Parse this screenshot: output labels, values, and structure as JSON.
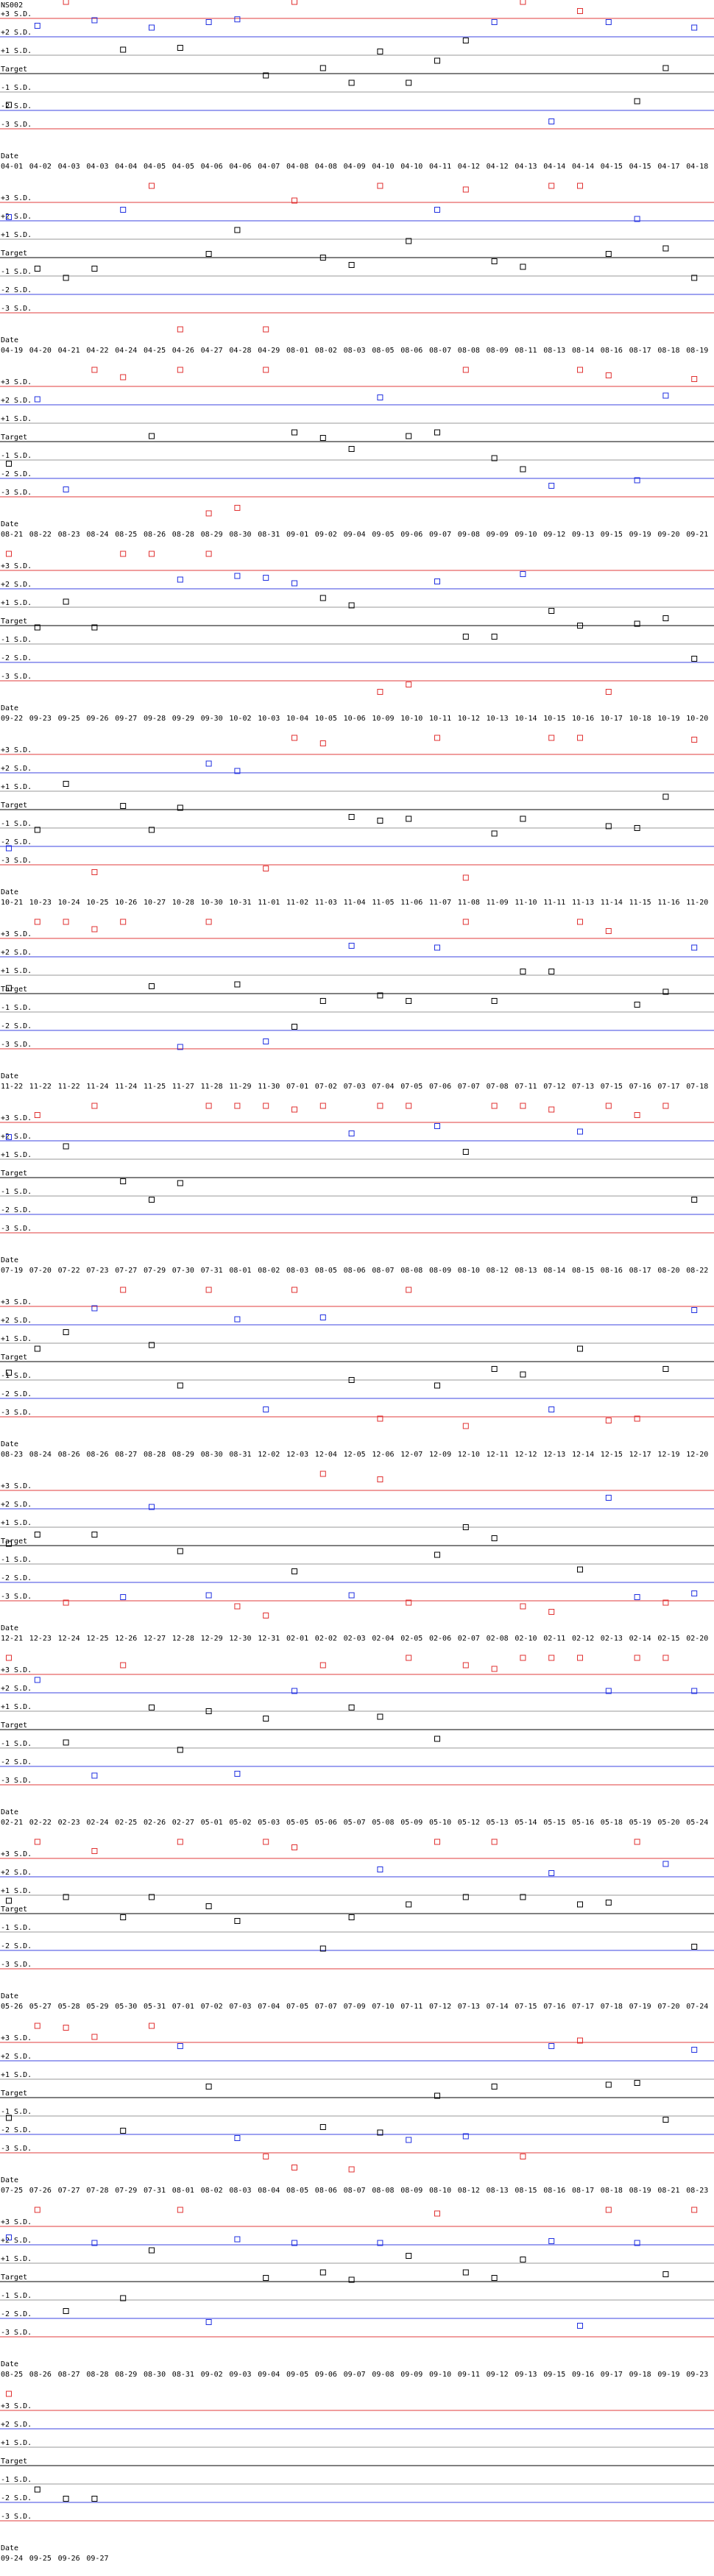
{
  "chart_data": {
    "type": "control",
    "title": "NS002",
    "x_label": "Date",
    "ylim": [
      -4,
      4
    ],
    "yticks": [
      {
        "value": 3,
        "label": "+3 S.D."
      },
      {
        "value": 2,
        "label": "+2 S.D."
      },
      {
        "value": 1,
        "label": "+1 S.D."
      },
      {
        "value": 0,
        "label": "Target"
      },
      {
        "value": -1,
        "label": "-1 S.D."
      },
      {
        "value": -2,
        "label": "-2 S.D."
      },
      {
        "value": -3,
        "label": "-3 S.D."
      }
    ],
    "line_colors": [
      "#e03c3c",
      "#3c46e0",
      "#9a9a9a",
      "#000000",
      "#9a9a9a",
      "#3c46e0",
      "#e03c3c"
    ],
    "point_colors": {
      "in": "#000000",
      "warning": "#2030e0",
      "out": "#e03030"
    },
    "panels": [
      {
        "categories": [
          "04-01",
          "04-02",
          "04-03",
          "04-03",
          "04-04",
          "04-05",
          "04-05",
          "04-06",
          "04-06",
          "04-07",
          "04-08",
          "04-08",
          "04-09",
          "04-10",
          "04-10",
          "04-11",
          "04-12",
          "04-12",
          "04-13",
          "04-14",
          "04-14",
          "04-15",
          "04-15",
          "04-17",
          "04-18"
        ],
        "values": [
          -1.7,
          2.6,
          3.9,
          2.9,
          1.3,
          2.5,
          1.4,
          2.8,
          2.95,
          -0.1,
          3.9,
          0.3,
          -0.5,
          1.2,
          -0.5,
          0.7,
          1.8,
          2.8,
          3.9,
          -2.6,
          3.4,
          2.8,
          -1.5,
          0.3,
          2.5
        ]
      },
      {
        "categories": [
          "04-19",
          "04-20",
          "04-21",
          "04-22",
          "04-24",
          "04-25",
          "04-26",
          "04-27",
          "04-28",
          "04-29",
          "08-01",
          "08-02",
          "08-03",
          "08-05",
          "08-06",
          "08-07",
          "08-08",
          "08-09",
          "08-11",
          "08-13",
          "08-14",
          "08-16",
          "08-17",
          "08-18",
          "08-19"
        ],
        "values": [
          2.2,
          -0.6,
          -1.1,
          -0.6,
          2.6,
          3.9,
          -3.9,
          0.2,
          1.5,
          -3.9,
          3.1,
          0,
          -0.4,
          3.9,
          0.9,
          2.6,
          3.7,
          -0.2,
          -0.5,
          3.9,
          3.9,
          0.2,
          2.1,
          0.5,
          -1.1
        ]
      },
      {
        "categories": [
          "08-21",
          "08-22",
          "08-23",
          "08-24",
          "08-25",
          "08-26",
          "08-28",
          "08-29",
          "08-30",
          "08-31",
          "09-01",
          "09-02",
          "09-04",
          "09-05",
          "09-06",
          "09-07",
          "09-08",
          "09-09",
          "09-10",
          "09-12",
          "09-13",
          "09-15",
          "09-19",
          "09-20",
          "09-21"
        ],
        "values": [
          -1.2,
          2.3,
          -2.6,
          3.9,
          3.5,
          0.3,
          3.9,
          -3.9,
          -3.6,
          3.9,
          0.5,
          0.2,
          -0.4,
          2.4,
          0.3,
          0.5,
          3.9,
          -0.9,
          -1.5,
          -2.4,
          3.9,
          3.6,
          -2.1,
          2.5,
          3.4
        ]
      },
      {
        "categories": [
          "09-22",
          "09-23",
          "09-25",
          "09-26",
          "09-27",
          "09-28",
          "09-29",
          "09-30",
          "10-02",
          "10-03",
          "10-04",
          "10-05",
          "10-06",
          "10-09",
          "10-10",
          "10-11",
          "10-12",
          "10-13",
          "10-14",
          "10-15",
          "10-16",
          "10-17",
          "10-18",
          "10-19",
          "10-20"
        ],
        "values": [
          3.9,
          -0.1,
          1.3,
          -0.1,
          3.9,
          3.9,
          2.5,
          3.9,
          2.7,
          2.6,
          2.3,
          1.5,
          1.1,
          -3.6,
          -3.2,
          2.4,
          -0.6,
          -0.6,
          2.8,
          0.8,
          0,
          -3.6,
          0.1,
          0.4,
          -1.8
        ]
      },
      {
        "categories": [
          "10-21",
          "10-23",
          "10-24",
          "10-25",
          "10-26",
          "10-27",
          "10-28",
          "10-30",
          "10-31",
          "11-01",
          "11-02",
          "11-03",
          "11-04",
          "11-05",
          "11-06",
          "11-07",
          "11-08",
          "11-09",
          "11-10",
          "11-11",
          "11-13",
          "11-14",
          "11-15",
          "11-16",
          "11-20"
        ],
        "values": [
          -2.1,
          -1.1,
          1.4,
          -3.4,
          0.2,
          -1.1,
          0.1,
          2.5,
          2.1,
          -3.2,
          3.9,
          3.6,
          -0.4,
          -0.6,
          -0.5,
          3.9,
          -3.7,
          -1.3,
          -0.5,
          3.9,
          3.9,
          -0.9,
          -1.0,
          0.7,
          3.8
        ]
      },
      {
        "categories": [
          "11-22",
          "11-22",
          "11-22",
          "11-24",
          "11-24",
          "11-25",
          "11-27",
          "11-28",
          "11-29",
          "11-30",
          "07-01",
          "07-02",
          "07-03",
          "07-04",
          "07-05",
          "07-06",
          "07-07",
          "07-08",
          "07-11",
          "07-12",
          "07-13",
          "07-15",
          "07-16",
          "07-17",
          "07-18"
        ],
        "values": [
          0.3,
          3.9,
          3.9,
          3.5,
          3.9,
          0.4,
          -2.9,
          3.9,
          0.5,
          -2.6,
          -1.8,
          -0.4,
          2.6,
          -0.1,
          -0.4,
          2.5,
          3.9,
          -0.4,
          1.2,
          1.2,
          3.9,
          3.4,
          -0.6,
          0.1,
          2.5
        ]
      },
      {
        "categories": [
          "07-19",
          "07-20",
          "07-22",
          "07-23",
          "07-27",
          "07-29",
          "07-30",
          "07-31",
          "08-01",
          "08-02",
          "08-03",
          "08-05",
          "08-06",
          "08-07",
          "08-08",
          "08-09",
          "08-10",
          "08-12",
          "08-13",
          "08-14",
          "08-15",
          "08-16",
          "08-17",
          "08-20",
          "08-22"
        ],
        "values": [
          2.2,
          3.4,
          1.7,
          3.9,
          -0.2,
          -1.2,
          -0.3,
          3.9,
          3.9,
          3.9,
          3.7,
          3.9,
          2.4,
          3.9,
          3.9,
          2.8,
          1.4,
          3.9,
          3.9,
          3.7,
          2.5,
          3.9,
          3.4,
          3.9,
          -1.2
        ]
      },
      {
        "categories": [
          "08-23",
          "08-24",
          "08-26",
          "08-26",
          "08-27",
          "08-28",
          "08-29",
          "08-30",
          "08-31",
          "12-02",
          "12-03",
          "12-04",
          "12-05",
          "12-06",
          "12-07",
          "12-09",
          "12-10",
          "12-11",
          "12-12",
          "12-13",
          "12-14",
          "12-15",
          "12-17",
          "12-19",
          "12-20"
        ],
        "values": [
          -0.6,
          0.7,
          1.6,
          2.9,
          3.9,
          0.9,
          -1.3,
          3.9,
          2.3,
          -2.6,
          3.9,
          2.4,
          -1.0,
          -3.1,
          3.9,
          -1.3,
          -3.5,
          -0.4,
          -0.7,
          -2.6,
          0.7,
          -3.2,
          -3.1,
          -0.4,
          2.8
        ]
      },
      {
        "categories": [
          "12-21",
          "12-23",
          "12-24",
          "12-25",
          "12-26",
          "12-27",
          "12-28",
          "12-29",
          "12-30",
          "12-31",
          "02-01",
          "02-02",
          "02-03",
          "02-04",
          "02-05",
          "02-06",
          "02-07",
          "02-08",
          "02-10",
          "02-11",
          "02-12",
          "02-13",
          "02-14",
          "02-15",
          "02-20"
        ],
        "values": [
          0.1,
          0.6,
          -3.1,
          0.6,
          -2.8,
          2.1,
          -0.3,
          -2.7,
          -3.3,
          -3.8,
          -1.4,
          3.9,
          -2.7,
          3.6,
          -3.1,
          -0.5,
          1.0,
          0.4,
          -3.3,
          -3.6,
          -1.3,
          2.6,
          -2.8,
          -3.1,
          -2.6
        ]
      },
      {
        "categories": [
          "02-21",
          "02-22",
          "02-23",
          "02-24",
          "02-25",
          "02-26",
          "02-27",
          "05-01",
          "05-02",
          "05-03",
          "05-05",
          "05-06",
          "05-07",
          "05-08",
          "05-09",
          "05-10",
          "05-12",
          "05-13",
          "05-14",
          "05-15",
          "05-16",
          "05-18",
          "05-19",
          "05-20",
          "05-24"
        ],
        "values": [
          3.9,
          2.7,
          -0.7,
          -2.5,
          3.5,
          1.2,
          -1.1,
          1.0,
          -2.4,
          0.6,
          2.1,
          3.5,
          1.2,
          0.7,
          3.9,
          -0.5,
          3.5,
          3.3,
          3.9,
          3.9,
          3.9,
          2.1,
          3.9,
          3.9,
          2.1
        ]
      },
      {
        "categories": [
          "05-26",
          "05-27",
          "05-28",
          "05-29",
          "05-30",
          "05-31",
          "07-01",
          "07-02",
          "07-03",
          "07-04",
          "07-05",
          "07-07",
          "07-09",
          "07-10",
          "07-11",
          "07-12",
          "07-13",
          "07-14",
          "07-15",
          "07-16",
          "07-17",
          "07-18",
          "07-19",
          "07-20",
          "07-24"
        ],
        "values": [
          0.7,
          3.9,
          0.9,
          3.4,
          -0.2,
          0.9,
          3.9,
          0.4,
          -0.4,
          3.9,
          3.6,
          -1.9,
          -0.2,
          2.4,
          0.5,
          3.9,
          0.9,
          3.9,
          0.9,
          2.2,
          0.5,
          0.6,
          3.9,
          2.7,
          -1.8
        ]
      },
      {
        "categories": [
          "07-25",
          "07-26",
          "07-27",
          "07-28",
          "07-29",
          "07-31",
          "08-01",
          "08-02",
          "08-03",
          "08-04",
          "08-05",
          "08-06",
          "08-07",
          "08-08",
          "08-09",
          "08-10",
          "08-12",
          "08-13",
          "08-15",
          "08-16",
          "08-17",
          "08-18",
          "08-19",
          "08-21",
          "08-23"
        ],
        "values": [
          -1.1,
          3.9,
          3.8,
          3.3,
          -1.8,
          3.9,
          2.8,
          0.6,
          -2.2,
          -3.2,
          -3.8,
          -1.6,
          -3.9,
          -1.9,
          -2.3,
          0.1,
          -2.1,
          0.6,
          -3.2,
          2.8,
          3.1,
          0.7,
          0.8,
          -1.2,
          2.6
        ]
      },
      {
        "categories": [
          "08-25",
          "08-26",
          "08-27",
          "08-28",
          "08-29",
          "08-30",
          "08-31",
          "09-02",
          "09-03",
          "09-04",
          "09-05",
          "09-06",
          "09-07",
          "09-08",
          "09-09",
          "09-10",
          "09-11",
          "09-12",
          "09-13",
          "09-15",
          "09-16",
          "09-17",
          "09-18",
          "09-19",
          "09-23"
        ],
        "values": [
          2.4,
          3.9,
          -1.6,
          2.1,
          -0.9,
          1.7,
          3.9,
          -2.2,
          2.3,
          0.2,
          2.1,
          0.5,
          0.1,
          2.1,
          1.4,
          3.7,
          0.5,
          0.2,
          1.2,
          2.2,
          -2.4,
          3.9,
          2.1,
          0.4,
          3.9
        ]
      },
      {
        "categories": [
          "09-24",
          "09-25",
          "09-26",
          "09-27"
        ],
        "values": [
          3.9,
          -1.3,
          -1.8,
          -1.8
        ]
      }
    ]
  }
}
